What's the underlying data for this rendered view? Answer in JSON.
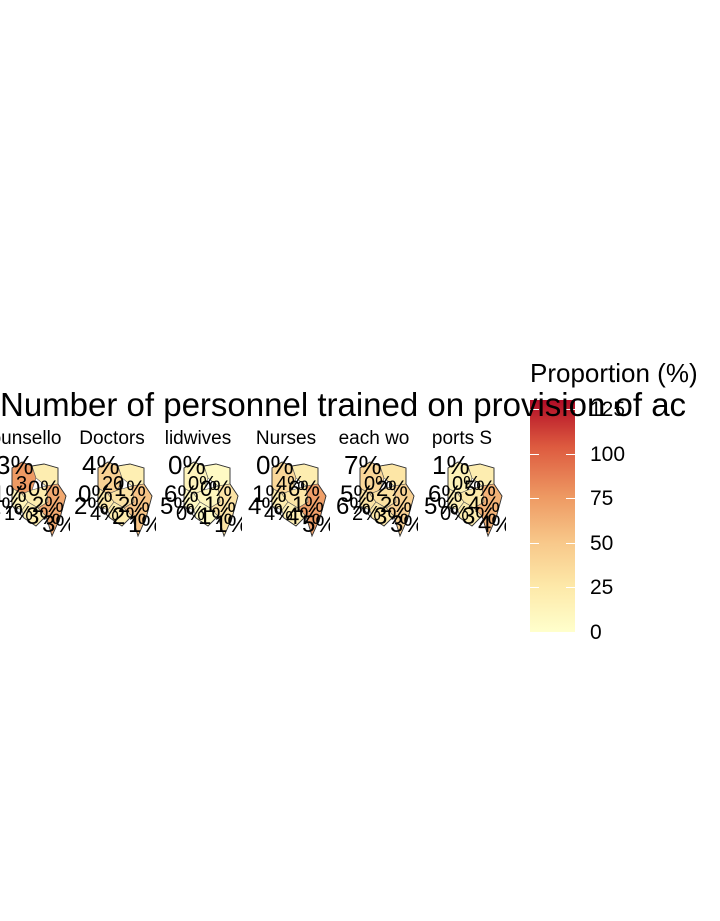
{
  "chart_data": {
    "type": "choropleth-facets",
    "title": "Number of personnel trained on provision of ac",
    "facets": [
      {
        "label": "ounsello",
        "labels": [
          "3%",
          "3",
          "1%",
          "0%",
          "1%",
          "2%",
          "1%",
          "3%",
          "3%"
        ],
        "region_values": [
          78,
          20,
          15,
          22,
          20,
          70
        ]
      },
      {
        "label": "Doctors",
        "labels": [
          "4%",
          "20",
          "0%",
          "1%",
          "2%",
          "2%",
          "4%",
          "2%",
          "1%"
        ],
        "region_values": [
          45,
          18,
          25,
          30,
          22,
          55
        ]
      },
      {
        "label": "lidwives",
        "labels": [
          "0%",
          "0%",
          "6%",
          "0%",
          "5%",
          "1%",
          "0%",
          "1%",
          "1%"
        ],
        "region_values": [
          12,
          6,
          8,
          10,
          5,
          30
        ]
      },
      {
        "label": "Nurses",
        "labels": [
          "0%",
          "4%",
          "1%",
          "6%",
          "4%",
          "1%",
          "4%",
          "4%",
          "5%"
        ],
        "region_values": [
          40,
          20,
          22,
          28,
          18,
          75
        ]
      },
      {
        "label": "each wo",
        "labels": [
          "7%",
          "0%",
          "5%",
          "2%",
          "6%",
          "2%",
          "2%",
          "3%",
          "3%"
        ],
        "region_values": [
          40,
          28,
          30,
          32,
          26,
          45
        ]
      },
      {
        "label": "ports S",
        "labels": [
          "1%",
          "0%",
          "6%",
          "5%",
          "5%",
          "4%",
          "0%",
          "3%",
          "4%"
        ],
        "region_values": [
          15,
          20,
          18,
          25,
          22,
          65
        ]
      }
    ],
    "legend": {
      "title": "Proportion (%)",
      "ticks": [
        125,
        100,
        75,
        50,
        25,
        0
      ],
      "tick_labels": [
        "125",
        "100",
        "75",
        "50",
        "25",
        "0"
      ],
      "range": [
        0,
        130
      ],
      "palette": [
        "#ffffcc",
        "#fde8a8",
        "#f8c98b",
        "#ee9a63",
        "#dd5a3f",
        "#b10c26"
      ]
    }
  }
}
